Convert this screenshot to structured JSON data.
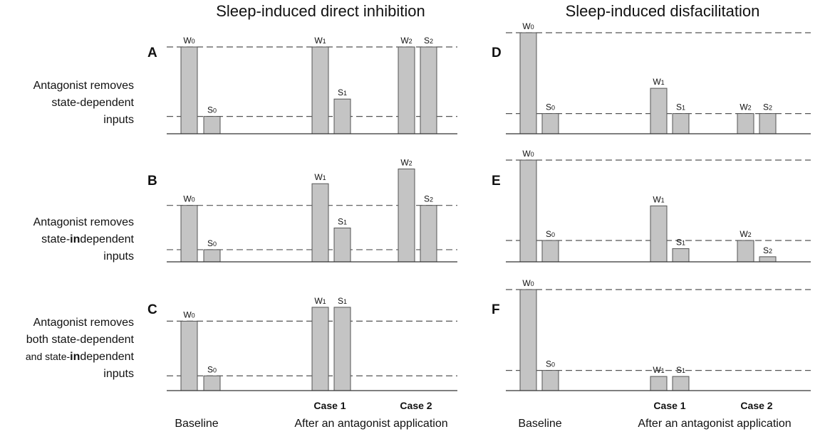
{
  "titles": {
    "left": "Sleep-induced direct inhibition",
    "right": "Sleep-induced disfacilitation"
  },
  "row_labels": {
    "row1": {
      "line1": "Antagonist removes",
      "line2": "state-dependent",
      "line3": "inputs"
    },
    "row2": {
      "line1": "Antagonist removes",
      "line2a": "state-",
      "line2b": "in",
      "line2c": "dependent",
      "line3": "inputs"
    },
    "row3": {
      "line1": "Antagonist removes",
      "line2": "both state-dependent",
      "line3a": "and state-",
      "line3b": "in",
      "line3c": "dependent",
      "line4": "inputs"
    }
  },
  "footer": {
    "baseline": "Baseline",
    "after": "After an antagonist application",
    "case1": "Case 1",
    "case2": "Case 2"
  },
  "chart_data": [
    {
      "panel": "A",
      "type": "bar",
      "ylim": [
        0,
        1.1
      ],
      "bars": [
        {
          "label": "W",
          "sub": "0",
          "value": 1.0
        },
        {
          "label": "S",
          "sub": "0",
          "value": 0.2
        },
        {
          "label": "W",
          "sub": "1",
          "value": 1.0
        },
        {
          "label": "S",
          "sub": "1",
          "value": 0.4
        },
        {
          "label": "W",
          "sub": "2",
          "value": 1.0
        },
        {
          "label": "S",
          "sub": "2",
          "value": 1.0
        }
      ],
      "ref_lines": [
        1.0,
        0.2
      ]
    },
    {
      "panel": "B",
      "type": "bar",
      "ylim": [
        0,
        1.1
      ],
      "bars": [
        {
          "label": "W",
          "sub": "0",
          "value": 0.65
        },
        {
          "label": "S",
          "sub": "0",
          "value": 0.14
        },
        {
          "label": "W",
          "sub": "1",
          "value": 0.9
        },
        {
          "label": "S",
          "sub": "1",
          "value": 0.39
        },
        {
          "label": "W",
          "sub": "2",
          "value": 1.07
        },
        {
          "label": "S",
          "sub": "2",
          "value": 0.65
        }
      ],
      "ref_lines": [
        0.65,
        0.14
      ]
    },
    {
      "panel": "C",
      "type": "bar",
      "ylim": [
        0,
        1.1
      ],
      "bars": [
        {
          "label": "W",
          "sub": "0",
          "value": 0.8
        },
        {
          "label": "S",
          "sub": "0",
          "value": 0.17
        },
        {
          "label": "W",
          "sub": "1",
          "value": 0.96
        },
        {
          "label": "S",
          "sub": "1",
          "value": 0.96
        }
      ],
      "ref_lines": [
        0.8,
        0.17
      ]
    },
    {
      "panel": "D",
      "type": "bar",
      "ylim": [
        0,
        1.1
      ],
      "bars": [
        {
          "label": "W",
          "sub": "0",
          "value": 1.0
        },
        {
          "label": "S",
          "sub": "0",
          "value": 0.2
        },
        {
          "label": "W",
          "sub": "1",
          "value": 0.45
        },
        {
          "label": "S",
          "sub": "1",
          "value": 0.2
        },
        {
          "label": "W",
          "sub": "2",
          "value": 0.2
        },
        {
          "label": "S",
          "sub": "2",
          "value": 0.2
        }
      ],
      "ref_lines": [
        1.0,
        0.2
      ]
    },
    {
      "panel": "E",
      "type": "bar",
      "ylim": [
        0,
        1.1
      ],
      "bars": [
        {
          "label": "W",
          "sub": "0",
          "value": 1.0
        },
        {
          "label": "S",
          "sub": "0",
          "value": 0.21
        },
        {
          "label": "W",
          "sub": "1",
          "value": 0.55
        },
        {
          "label": "S",
          "sub": "1",
          "value": 0.13
        },
        {
          "label": "W",
          "sub": "2",
          "value": 0.21
        },
        {
          "label": "S",
          "sub": "2",
          "value": 0.05
        }
      ],
      "ref_lines": [
        1.0,
        0.21
      ]
    },
    {
      "panel": "F",
      "type": "bar",
      "ylim": [
        0,
        1.1
      ],
      "bars": [
        {
          "label": "W",
          "sub": "0",
          "value": 1.0
        },
        {
          "label": "S",
          "sub": "0",
          "value": 0.2
        },
        {
          "label": "W",
          "sub": "1",
          "value": 0.14
        },
        {
          "label": "S",
          "sub": "1",
          "value": 0.14
        }
      ],
      "ref_lines": [
        1.0,
        0.2
      ]
    }
  ]
}
